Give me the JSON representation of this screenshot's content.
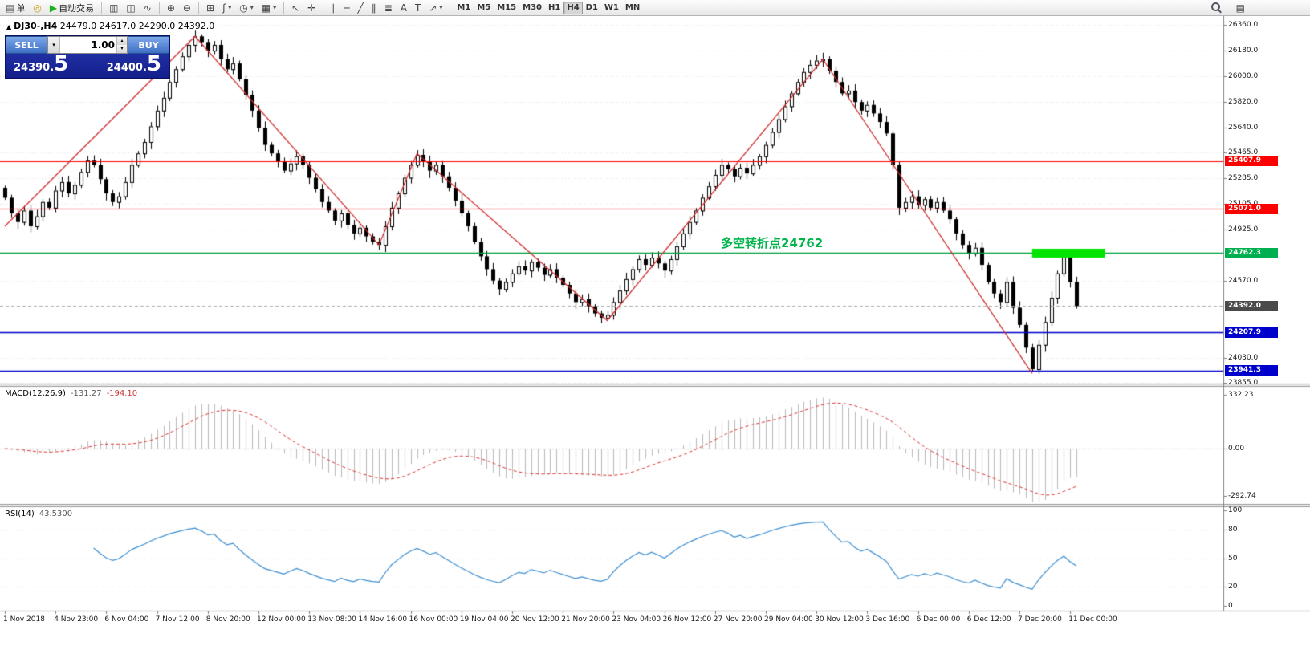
{
  "toolbar": {
    "items": [
      {
        "name": "new-order-button",
        "glyph": "▤",
        "label": "单",
        "color": "#6a6a6a"
      },
      {
        "name": "compass-icon-button",
        "glyph": "◎",
        "color": "#c8a317"
      },
      {
        "name": "auto-trading-button",
        "glyph": "▶",
        "label": "自动交易",
        "color": "#1faf1f"
      },
      {
        "sep": true
      },
      {
        "name": "bar-chart-button",
        "glyph": "▥"
      },
      {
        "name": "candlestick-chart-button",
        "glyph": "◫"
      },
      {
        "name": "line-chart-button",
        "glyph": "∿"
      },
      {
        "sep": true
      },
      {
        "name": "zoom-in-button",
        "glyph": "⊕"
      },
      {
        "name": "zoom-out-button",
        "glyph": "⊖"
      },
      {
        "sep": true
      },
      {
        "name": "tile-windows-button",
        "glyph": "⊞"
      },
      {
        "name": "indicators-button",
        "glyph": "ƒ",
        "dropdown": true
      },
      {
        "name": "periods-button",
        "glyph": "◷",
        "dropdown": true
      },
      {
        "name": "templates-button",
        "glyph": "▦",
        "dropdown": true
      },
      {
        "sep": true
      },
      {
        "name": "cursor-button",
        "glyph": "↖"
      },
      {
        "name": "crosshair-button",
        "glyph": "✛"
      },
      {
        "sep": true
      },
      {
        "name": "vertical-line-button",
        "glyph": "∣"
      },
      {
        "name": "horizontal-line-button",
        "glyph": "─"
      },
      {
        "name": "trendline-button",
        "glyph": "╱"
      },
      {
        "name": "channel-button",
        "glyph": "∥"
      },
      {
        "name": "fibonacci-button",
        "glyph": "≣"
      },
      {
        "name": "text-button",
        "glyph": "A"
      },
      {
        "name": "label-button",
        "glyph": "T"
      },
      {
        "name": "arrows-button",
        "glyph": "↗",
        "dropdown": true
      },
      {
        "sep": true
      }
    ],
    "timeframes": [
      "M1",
      "M5",
      "M15",
      "M30",
      "H1",
      "H4",
      "D1",
      "W1",
      "MN"
    ],
    "active_timeframe": "H4"
  },
  "chart": {
    "marker": "▲",
    "title": "DJ30-,H4",
    "ohlc_text": "24479.0 24617.0 24290.0 24392.0",
    "annotation": "多空转折点24762"
  },
  "trade_panel": {
    "sell_label": "SELL",
    "buy_label": "BUY",
    "volume": "1.00",
    "dropdown_icon": "▾",
    "spin_up_icon": "▴",
    "spin_down_icon": "▾",
    "sell_price_main": "24390.",
    "sell_price_big": "5",
    "buy_price_main": "24400.",
    "buy_price_big": "5"
  },
  "macd_panel": {
    "title": "MACD(12,26,9)",
    "value": "-131.27",
    "signal_value": "-194.10"
  },
  "rsi_panel": {
    "title": "RSI(14)",
    "value": "43.5300"
  },
  "chart_data": {
    "type": "candlestick",
    "symbol": "DJ30-",
    "timeframe": "H4",
    "ohlc_today": {
      "open": 24479.0,
      "high": 24617.0,
      "low": 24290.0,
      "close": 24392.0
    },
    "ylim": [
      23849,
      26422
    ],
    "x0": 6,
    "dx": 7.9,
    "candle_width": 5,
    "open_first": 25220,
    "closes": [
      25150,
      25040,
      24980,
      25060,
      24950,
      25020,
      25120,
      25080,
      25200,
      25260,
      25180,
      25240,
      25330,
      25410,
      25380,
      25280,
      25180,
      25120,
      25160,
      25260,
      25380,
      25460,
      25540,
      25650,
      25760,
      25850,
      25960,
      26050,
      26140,
      26220,
      26280,
      26240,
      26180,
      26220,
      26120,
      26050,
      26090,
      25980,
      25870,
      25760,
      25640,
      25520,
      25460,
      25400,
      25340,
      25390,
      25440,
      25380,
      25290,
      25210,
      25120,
      25060,
      24990,
      25040,
      24960,
      24900,
      24940,
      24880,
      24840,
      24820,
      24950,
      25080,
      25180,
      25290,
      25380,
      25450,
      25400,
      25340,
      25380,
      25300,
      25220,
      25130,
      25040,
      24950,
      24840,
      24740,
      24650,
      24570,
      24510,
      24560,
      24620,
      24670,
      24640,
      24700,
      24660,
      24610,
      24650,
      24590,
      24540,
      24480,
      24420,
      24440,
      24390,
      24340,
      24310,
      24330,
      24420,
      24500,
      24580,
      24650,
      24720,
      24680,
      24730,
      24690,
      24640,
      24720,
      24810,
      24900,
      24980,
      25060,
      25150,
      25230,
      25310,
      25380,
      25350,
      25300,
      25360,
      25320,
      25380,
      25440,
      25520,
      25610,
      25700,
      25790,
      25880,
      25960,
      26030,
      26080,
      26110,
      26120,
      26040,
      25960,
      25880,
      25900,
      25820,
      25760,
      25800,
      25740,
      25680,
      25600,
      25380,
      25080,
      25120,
      25160,
      25100,
      25140,
      25080,
      25120,
      25060,
      25000,
      24900,
      24820,
      24760,
      24800,
      24680,
      24560,
      24480,
      24420,
      24560,
      24380,
      24260,
      24100,
      23950,
      24120,
      24280,
      24450,
      24620,
      24760,
      24560,
      24392
    ],
    "zigzag": [
      [
        0,
        24950
      ],
      [
        30,
        26280
      ],
      [
        59,
        24820
      ],
      [
        65,
        25460
      ],
      [
        95,
        24290
      ],
      [
        129,
        26120
      ],
      [
        162,
        23920
      ]
    ],
    "zigzag_color": "#d03030",
    "hlines": [
      {
        "price": 25407.9,
        "color": "#ff0000",
        "width": 1
      },
      {
        "price": 25071.0,
        "color": "#ff0000",
        "width": 1
      },
      {
        "price": 24762.3,
        "color": "#00a040",
        "width": 1.5
      },
      {
        "price": 24207.9,
        "color": "#0000cc",
        "width": 1.5
      },
      {
        "price": 23941.3,
        "color": "#0000cc",
        "width": 1.5
      }
    ],
    "current_price_line": {
      "price": 24392.0,
      "color": "#aaaaaa"
    },
    "highlight_segment": {
      "price": 24762.0,
      "from_index": 162,
      "to_index": 173.5,
      "color": "#00e400",
      "thickness": 11
    },
    "price_ticks": [
      26360.0,
      26180.0,
      26000.0,
      25820.0,
      25640.0,
      25465.0,
      25285.0,
      25105.0,
      24925.0,
      24570.0,
      24030.0,
      23855.0
    ],
    "price_badges": [
      {
        "value": "25407.9",
        "price": 25407.9,
        "bg": "#ff0000"
      },
      {
        "value": "25071.0",
        "price": 25071.0,
        "bg": "#ff0000"
      },
      {
        "value": "24762.3",
        "price": 24762.3,
        "bg": "#00b050"
      },
      {
        "value": "24392.0",
        "price": 24392.0,
        "bg": "#4a4a4a"
      },
      {
        "value": "24207.9",
        "price": 24207.9,
        "bg": "#0000cc"
      },
      {
        "value": "23941.3",
        "price": 23941.3,
        "bg": "#0000cc"
      }
    ],
    "macd": {
      "fast": 12,
      "slow": 26,
      "signal": 9,
      "ylim": [
        -340,
        380
      ],
      "axis": [
        332.23,
        0,
        -292.74
      ],
      "current": -131.27,
      "current_signal": -194.1
    },
    "rsi": {
      "period": 14,
      "levels": [
        80,
        50,
        20
      ],
      "axis": [
        100,
        80,
        50,
        20,
        0
      ],
      "current": 43.53
    },
    "time_labels": [
      {
        "i": 0,
        "t": "1 Nov 2018"
      },
      {
        "i": 8,
        "t": "4 Nov 23:00"
      },
      {
        "i": 16,
        "t": "6 Nov 04:00"
      },
      {
        "i": 24,
        "t": "7 Nov 12:00"
      },
      {
        "i": 32,
        "t": "8 Nov 20:00"
      },
      {
        "i": 40,
        "t": "12 Nov 00:00"
      },
      {
        "i": 48,
        "t": "13 Nov 08:00"
      },
      {
        "i": 56,
        "t": "14 Nov 16:00"
      },
      {
        "i": 64,
        "t": "16 Nov 00:00"
      },
      {
        "i": 72,
        "t": "19 Nov 04:00"
      },
      {
        "i": 80,
        "t": "20 Nov 12:00"
      },
      {
        "i": 88,
        "t": "21 Nov 20:00"
      },
      {
        "i": 96,
        "t": "23 Nov 04:00"
      },
      {
        "i": 104,
        "t": "26 Nov 12:00"
      },
      {
        "i": 112,
        "t": "27 Nov 20:00"
      },
      {
        "i": 120,
        "t": "29 Nov 04:00"
      },
      {
        "i": 128,
        "t": "30 Nov 12:00"
      },
      {
        "i": 136,
        "t": "3 Dec 16:00"
      },
      {
        "i": 144,
        "t": "6 Dec 00:00"
      },
      {
        "i": 152,
        "t": "6 Dec 12:00"
      },
      {
        "i": 160,
        "t": "7 Dec 20:00"
      },
      {
        "i": 168,
        "t": "11 Dec 00:00"
      }
    ]
  }
}
